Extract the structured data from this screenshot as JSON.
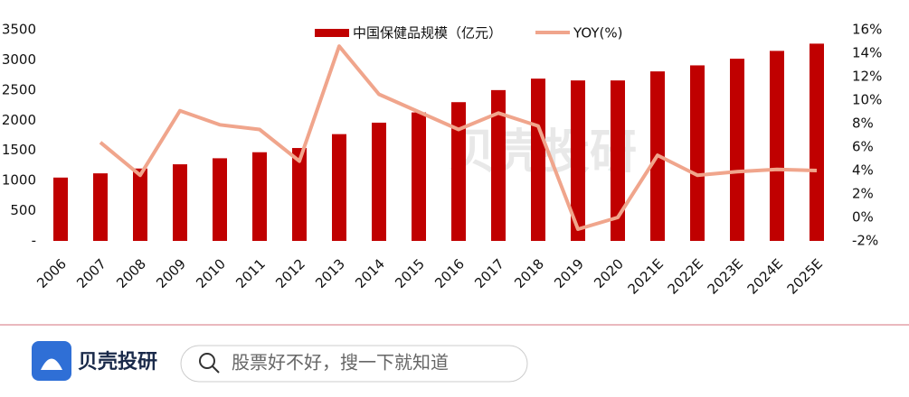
{
  "chart_data": {
    "type": "bar",
    "categories": [
      "2006",
      "2007",
      "2008",
      "2009",
      "2010",
      "2011",
      "2012",
      "2013",
      "2014",
      "2015",
      "2016",
      "2017",
      "2018",
      "2019",
      "2020",
      "2021E",
      "2022E",
      "2023E",
      "2024E",
      "2025E"
    ],
    "series": [
      {
        "name": "中国保健品规模（亿元）",
        "type": "bar",
        "color": "#c00000",
        "values": [
          1050,
          1120,
          1200,
          1270,
          1370,
          1470,
          1540,
          1770,
          1960,
          2130,
          2300,
          2500,
          2690,
          2660,
          2660,
          2810,
          2910,
          3020,
          3150,
          3270
        ]
      },
      {
        "name": "YOY(%)",
        "type": "line",
        "axis": "y2",
        "color": "#f0a58c",
        "values": [
          null,
          6.4,
          3.6,
          9.1,
          7.9,
          7.5,
          4.8,
          14.6,
          10.5,
          9.0,
          7.5,
          8.9,
          7.8,
          -1.0,
          0.0,
          5.3,
          3.6,
          3.9,
          4.1,
          4.0
        ]
      }
    ],
    "ylim": [
      0,
      3500
    ],
    "yticks": [
      {
        "value": 0,
        "label": "-"
      },
      500,
      1000,
      1500,
      2000,
      2500,
      3000,
      3500
    ],
    "y2lim": [
      -2,
      16
    ],
    "y2ticks": [
      {
        "value": -2,
        "label": "-2%"
      },
      {
        "value": 0,
        "label": "0%"
      },
      {
        "value": 2,
        "label": "2%"
      },
      {
        "value": 4,
        "label": "4%"
      },
      {
        "value": 6,
        "label": "6%"
      },
      {
        "value": 8,
        "label": "8%"
      },
      {
        "value": 10,
        "label": "10%"
      },
      {
        "value": 12,
        "label": "12%"
      },
      {
        "value": 14,
        "label": "14%"
      },
      {
        "value": 16,
        "label": "16%"
      }
    ],
    "grid": false
  },
  "watermark": "贝壳投研",
  "footer": {
    "brand": "贝壳投研",
    "search_placeholder": "股票好不好，搜一下就知道"
  }
}
